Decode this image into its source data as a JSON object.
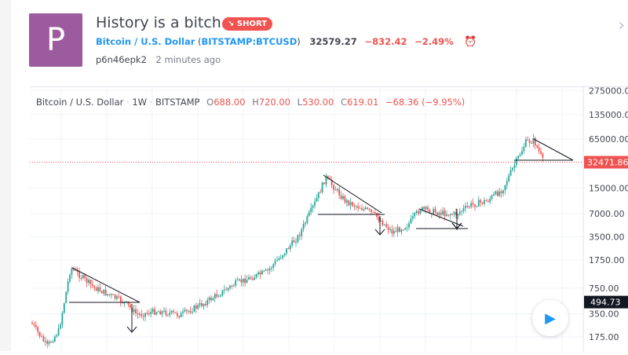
{
  "idea": {
    "avatar_letter": "P",
    "title": "History is a bitch.",
    "badge": "SHORT",
    "badge_icon": "arrow-down-right-icon",
    "symbol_name": "Bitcoin / U.S. Dollar",
    "symbol_code": "BITSTAMP:BTCUSD",
    "last_price": "32579.27",
    "change": "−832.42",
    "change_pct": "−2.49%",
    "author": "p6n46epk2",
    "time_ago": "2 minutes ago"
  },
  "chart": {
    "legend": {
      "symbol": "Bitcoin / U.S. Dollar",
      "interval": "1W",
      "exchange": "BITSTAMP"
    },
    "ohlc": {
      "o": "688.00",
      "h": "720.00",
      "l": "530.00",
      "c": "619.01",
      "change": "−68.36 (−9.95%)"
    },
    "price_axis": [
      "275000.00",
      "135000.00",
      "65000.00",
      "15000.00",
      "7000.00",
      "3500.00",
      "1750.00",
      "750.00",
      "350.00",
      "175.00"
    ],
    "current_price_label": "32471.86",
    "crosshair_price_label": "494.73",
    "colors": {
      "up": "#26a69a",
      "down": "#ef5350",
      "accent": "#2196f3",
      "badge": "#f05350"
    }
  }
}
